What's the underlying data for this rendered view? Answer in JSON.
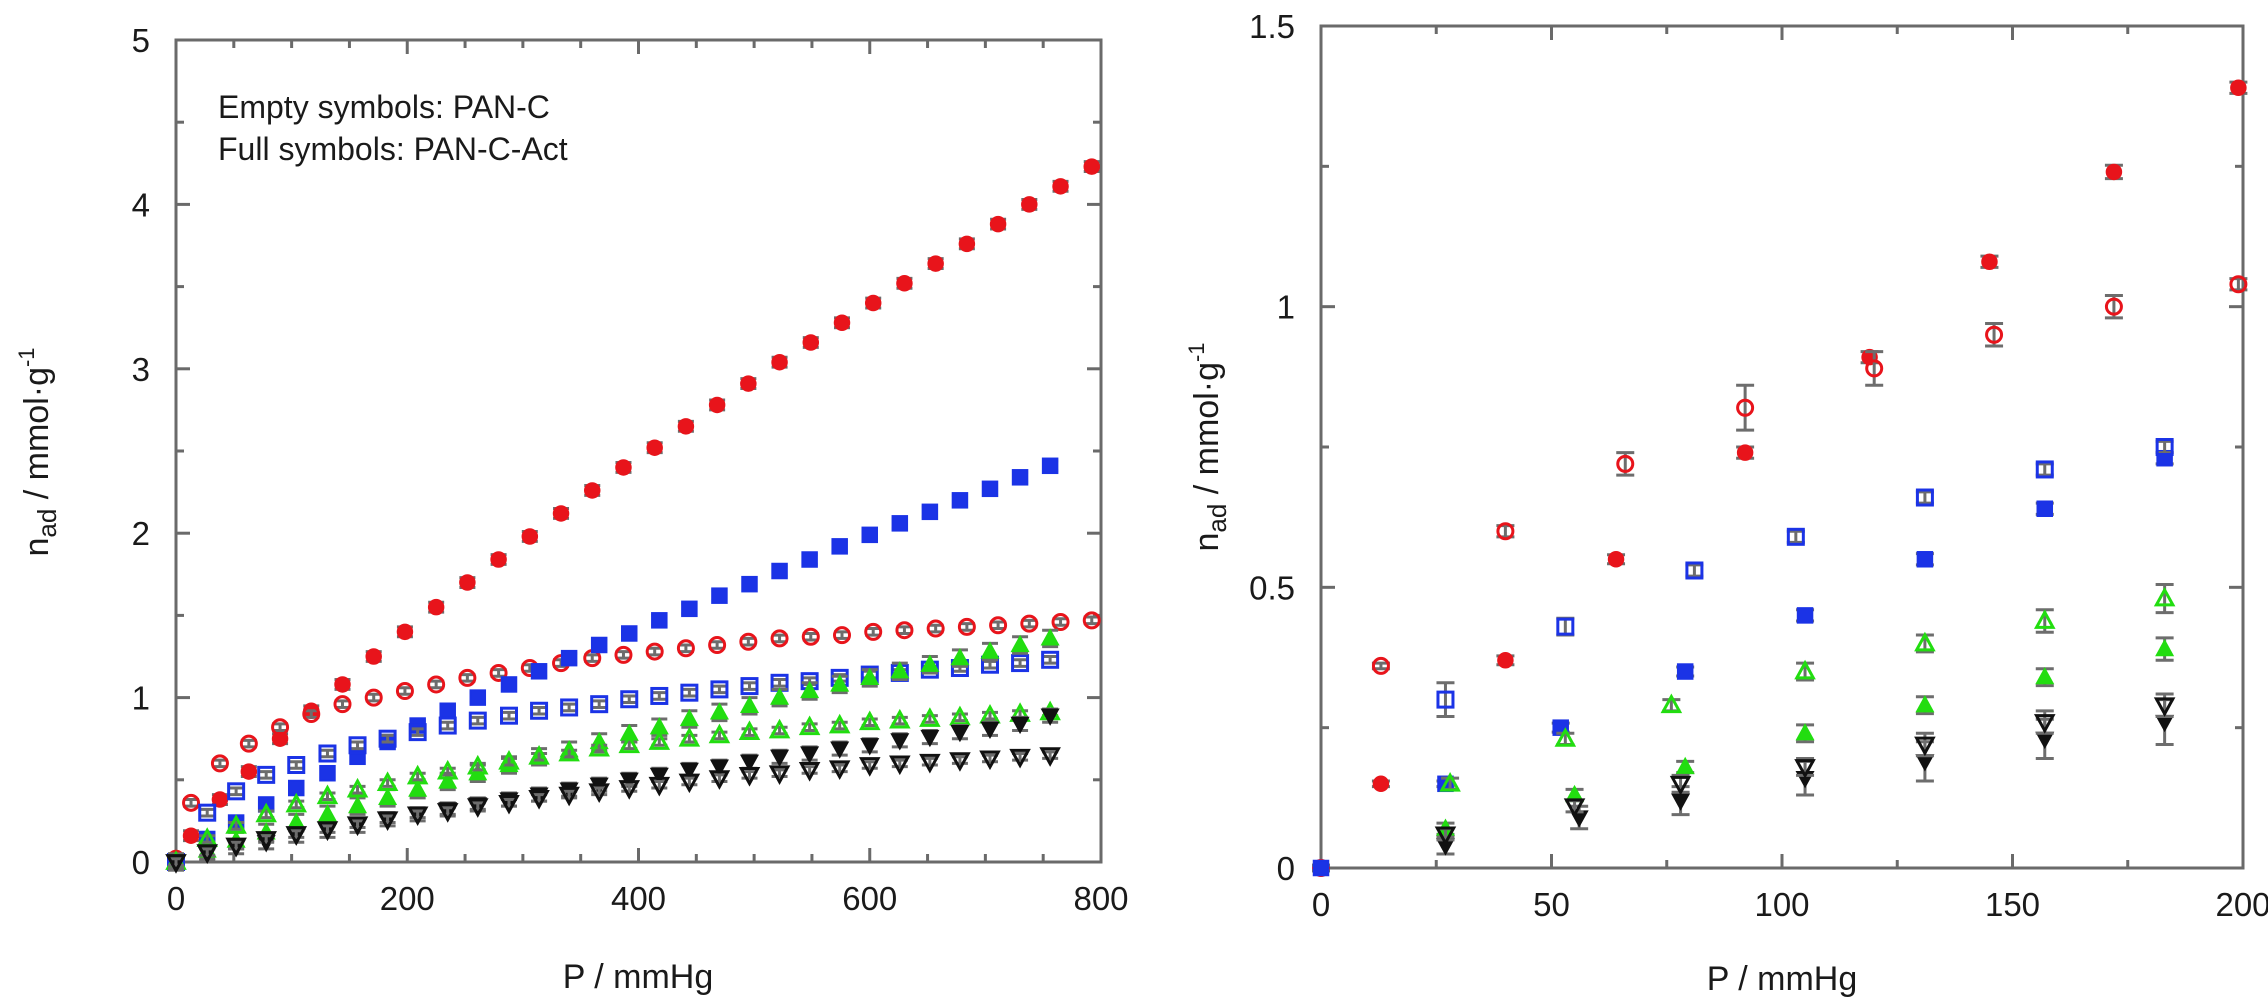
{
  "colors": {
    "red": "#e8141b",
    "blue": "#1b33e6",
    "green": "#22dd10",
    "black": "#111111",
    "axis": "#6a6a6a",
    "errorbar": "#6d6d6d"
  },
  "chart_data": [
    {
      "type": "scatter",
      "xlabel": "P / mmHg",
      "ylabel_main": "n",
      "ylabel_sub": "ad",
      "ylabel_rest": " / mmol·g",
      "ylabel_sup": "-1",
      "xlim": [
        0,
        800
      ],
      "ylim": [
        0,
        5
      ],
      "xticks": [
        "0",
        "200",
        "400",
        "600",
        "800"
      ],
      "yticks": [
        "0",
        "1",
        "2",
        "3",
        "4",
        "5"
      ],
      "xtick_values": [
        0,
        200,
        400,
        600,
        800
      ],
      "ytick_values": [
        0,
        1,
        2,
        3,
        4,
        5
      ],
      "annotations": [
        "Empty symbols: PAN-C",
        "Full symbols: PAN-C-Act"
      ],
      "series": [
        {
          "name": "PAN-C-Act red",
          "marker": "circle",
          "filled": true,
          "color": "red",
          "x": [
            0,
            13,
            38,
            63,
            90,
            117,
            144,
            171,
            198,
            225,
            252,
            279,
            306,
            333,
            360,
            387,
            414,
            441,
            468,
            495,
            522,
            549,
            576,
            603,
            630,
            657,
            684,
            711,
            738,
            765,
            792
          ],
          "y": [
            0.02,
            0.16,
            0.38,
            0.55,
            0.75,
            0.92,
            1.08,
            1.25,
            1.4,
            1.55,
            1.7,
            1.84,
            1.98,
            2.12,
            2.26,
            2.4,
            2.52,
            2.65,
            2.78,
            2.91,
            3.04,
            3.16,
            3.28,
            3.4,
            3.52,
            3.64,
            3.76,
            3.88,
            4.0,
            4.11,
            4.23
          ],
          "err": 0.03
        },
        {
          "name": "PAN-C red",
          "marker": "circle",
          "filled": false,
          "color": "red",
          "x": [
            0,
            13,
            38,
            63,
            90,
            117,
            144,
            171,
            198,
            225,
            252,
            279,
            306,
            333,
            360,
            387,
            414,
            441,
            468,
            495,
            522,
            549,
            576,
            603,
            630,
            657,
            684,
            711,
            738,
            765,
            792
          ],
          "y": [
            0.02,
            0.36,
            0.6,
            0.72,
            0.82,
            0.9,
            0.96,
            1.0,
            1.04,
            1.08,
            1.12,
            1.15,
            1.18,
            1.21,
            1.24,
            1.26,
            1.28,
            1.3,
            1.32,
            1.34,
            1.36,
            1.37,
            1.38,
            1.4,
            1.41,
            1.42,
            1.43,
            1.44,
            1.45,
            1.46,
            1.47
          ],
          "err": 0.02
        },
        {
          "name": "PAN-C-Act blue",
          "marker": "square",
          "filled": true,
          "color": "blue",
          "x": [
            0,
            27,
            52,
            78,
            104,
            131,
            157,
            183,
            209,
            235,
            261,
            288,
            314,
            340,
            366,
            392,
            418,
            444,
            470,
            496,
            522,
            548,
            574,
            600,
            626,
            652,
            678,
            704,
            730,
            756
          ],
          "y": [
            0.0,
            0.14,
            0.24,
            0.35,
            0.45,
            0.54,
            0.64,
            0.73,
            0.83,
            0.92,
            1.0,
            1.08,
            1.16,
            1.24,
            1.32,
            1.39,
            1.47,
            1.54,
            1.62,
            1.69,
            1.77,
            1.84,
            1.92,
            1.99,
            2.06,
            2.13,
            2.2,
            2.27,
            2.34,
            2.41
          ],
          "err": 0.03
        },
        {
          "name": "PAN-C blue",
          "marker": "square",
          "filled": false,
          "color": "blue",
          "x": [
            0,
            27,
            52,
            78,
            104,
            131,
            157,
            183,
            209,
            235,
            261,
            288,
            314,
            340,
            366,
            392,
            418,
            444,
            470,
            496,
            522,
            548,
            574,
            600,
            626,
            652,
            678,
            704,
            730,
            756
          ],
          "y": [
            0.0,
            0.3,
            0.43,
            0.53,
            0.59,
            0.66,
            0.71,
            0.75,
            0.79,
            0.83,
            0.86,
            0.89,
            0.92,
            0.94,
            0.96,
            0.99,
            1.01,
            1.03,
            1.05,
            1.07,
            1.09,
            1.1,
            1.12,
            1.14,
            1.15,
            1.17,
            1.18,
            1.2,
            1.21,
            1.23
          ],
          "err": 0.02
        },
        {
          "name": "PAN-C-Act green",
          "marker": "triangle-up",
          "filled": true,
          "color": "green",
          "x": [
            0,
            27,
            52,
            78,
            104,
            131,
            157,
            183,
            209,
            235,
            261,
            288,
            314,
            340,
            366,
            392,
            418,
            444,
            470,
            496,
            522,
            548,
            574,
            600,
            626,
            652,
            678,
            704,
            730,
            756
          ],
          "y": [
            0.0,
            0.07,
            0.13,
            0.18,
            0.24,
            0.29,
            0.34,
            0.39,
            0.44,
            0.49,
            0.54,
            0.59,
            0.64,
            0.68,
            0.73,
            0.78,
            0.82,
            0.87,
            0.91,
            0.95,
            1.0,
            1.04,
            1.08,
            1.12,
            1.16,
            1.2,
            1.24,
            1.28,
            1.32,
            1.36
          ],
          "err": 0.05
        },
        {
          "name": "PAN-C green",
          "marker": "triangle-up",
          "filled": false,
          "color": "green",
          "x": [
            0,
            27,
            52,
            78,
            104,
            131,
            157,
            183,
            209,
            235,
            261,
            288,
            314,
            340,
            366,
            392,
            418,
            444,
            470,
            496,
            522,
            548,
            574,
            600,
            626,
            652,
            678,
            704,
            730,
            756
          ],
          "y": [
            0.0,
            0.14,
            0.22,
            0.29,
            0.35,
            0.4,
            0.44,
            0.48,
            0.52,
            0.55,
            0.58,
            0.61,
            0.64,
            0.66,
            0.69,
            0.71,
            0.73,
            0.75,
            0.77,
            0.79,
            0.8,
            0.82,
            0.83,
            0.85,
            0.86,
            0.87,
            0.88,
            0.89,
            0.9,
            0.91
          ],
          "err": 0.02
        },
        {
          "name": "PAN-C-Act black",
          "marker": "triangle-down",
          "filled": true,
          "color": "black",
          "x": [
            0,
            27,
            52,
            78,
            104,
            131,
            157,
            183,
            209,
            235,
            261,
            288,
            314,
            340,
            366,
            392,
            418,
            444,
            470,
            496,
            522,
            548,
            574,
            600,
            626,
            652,
            678,
            704,
            730,
            756
          ],
          "y": [
            0.0,
            0.05,
            0.09,
            0.12,
            0.16,
            0.19,
            0.22,
            0.26,
            0.29,
            0.32,
            0.35,
            0.38,
            0.41,
            0.44,
            0.47,
            0.5,
            0.53,
            0.56,
            0.58,
            0.61,
            0.64,
            0.66,
            0.69,
            0.71,
            0.74,
            0.76,
            0.79,
            0.81,
            0.84,
            0.89
          ],
          "err": 0.04
        },
        {
          "name": "PAN-C black",
          "marker": "triangle-down",
          "filled": false,
          "color": "black",
          "x": [
            0,
            27,
            52,
            78,
            104,
            131,
            157,
            183,
            209,
            235,
            261,
            288,
            314,
            340,
            366,
            392,
            418,
            444,
            470,
            496,
            522,
            548,
            574,
            600,
            626,
            652,
            678,
            704,
            730,
            756
          ],
          "y": [
            0.0,
            0.06,
            0.1,
            0.14,
            0.17,
            0.2,
            0.23,
            0.26,
            0.29,
            0.31,
            0.34,
            0.36,
            0.39,
            0.41,
            0.43,
            0.45,
            0.47,
            0.49,
            0.51,
            0.53,
            0.54,
            0.56,
            0.57,
            0.59,
            0.6,
            0.61,
            0.62,
            0.63,
            0.64,
            0.65
          ],
          "err": 0.02
        }
      ]
    },
    {
      "type": "scatter",
      "xlabel": "P / mmHg",
      "ylabel_main": "n",
      "ylabel_sub": "ad",
      "ylabel_rest": " / mmol·g",
      "ylabel_sup": "-1",
      "xlim": [
        0,
        200
      ],
      "ylim": [
        0,
        1.5
      ],
      "xticks": [
        "0",
        "50",
        "100",
        "150",
        "200"
      ],
      "yticks": [
        "0",
        "0.5",
        "1",
        "1.5"
      ],
      "xtick_values": [
        0,
        50,
        100,
        150,
        200
      ],
      "ytick_values": [
        0,
        0.5,
        1,
        1.5
      ],
      "series": [
        {
          "name": "PAN-C-Act red",
          "marker": "circle",
          "filled": true,
          "color": "red",
          "x": [
            0,
            13,
            40,
            64,
            92,
            119,
            145,
            172,
            199
          ],
          "y": [
            0.0,
            0.15,
            0.37,
            0.55,
            0.74,
            0.91,
            1.08,
            1.24,
            1.39
          ],
          "err": [
            0.005,
            0.005,
            0.008,
            0.008,
            0.01,
            0.01,
            0.01,
            0.012,
            0.01
          ]
        },
        {
          "name": "PAN-C red",
          "marker": "circle",
          "filled": false,
          "color": "red",
          "x": [
            0,
            13,
            40,
            66,
            92,
            120,
            146,
            172,
            199
          ],
          "y": [
            0.0,
            0.36,
            0.6,
            0.72,
            0.82,
            0.89,
            0.95,
            1.0,
            1.04
          ],
          "err": [
            0.005,
            0.005,
            0.01,
            0.02,
            0.04,
            0.03,
            0.02,
            0.02,
            0.01
          ]
        },
        {
          "name": "PAN-C-Act blue",
          "marker": "square",
          "filled": true,
          "color": "blue",
          "x": [
            0,
            27,
            52,
            79,
            105,
            131,
            157,
            183
          ],
          "y": [
            0.0,
            0.15,
            0.25,
            0.35,
            0.45,
            0.55,
            0.64,
            0.73
          ],
          "err": [
            0.005,
            0.005,
            0.008,
            0.008,
            0.01,
            0.01,
            0.01,
            0.01
          ]
        },
        {
          "name": "PAN-C blue",
          "marker": "square",
          "filled": false,
          "color": "blue",
          "x": [
            27,
            53,
            81,
            103,
            131,
            157,
            183
          ],
          "y": [
            0.3,
            0.43,
            0.53,
            0.59,
            0.66,
            0.71,
            0.75
          ],
          "err": [
            0.03,
            0.015,
            0.01,
            0.01,
            0.01,
            0.01,
            0.01
          ]
        },
        {
          "name": "PAN-C-Act green",
          "marker": "triangle-up",
          "filled": true,
          "color": "green",
          "x": [
            27,
            55,
            79,
            105,
            131,
            157,
            183
          ],
          "y": [
            0.07,
            0.13,
            0.18,
            0.24,
            0.29,
            0.34,
            0.39
          ],
          "err": [
            0.01,
            0.01,
            0.01,
            0.015,
            0.015,
            0.015,
            0.02
          ]
        },
        {
          "name": "PAN-C green",
          "marker": "triangle-up",
          "filled": false,
          "color": "green",
          "x": [
            28,
            53,
            76,
            105,
            131,
            157,
            183
          ],
          "y": [
            0.15,
            0.23,
            0.29,
            0.35,
            0.4,
            0.44,
            0.48
          ],
          "err": [
            0.01,
            0.01,
            0.01,
            0.015,
            0.015,
            0.02,
            0.025
          ]
        },
        {
          "name": "PAN-C-Act black",
          "marker": "triangle-down",
          "filled": true,
          "color": "black",
          "x": [
            27,
            56,
            78,
            105,
            131,
            157,
            183
          ],
          "y": [
            0.04,
            0.09,
            0.12,
            0.16,
            0.19,
            0.23,
            0.26
          ],
          "err": [
            0.015,
            0.02,
            0.025,
            0.03,
            0.035,
            0.035,
            0.04
          ]
        },
        {
          "name": "PAN-C black",
          "marker": "triangle-down",
          "filled": false,
          "color": "black",
          "x": [
            27,
            55,
            78,
            105,
            131,
            157,
            183
          ],
          "y": [
            0.06,
            0.11,
            0.15,
            0.18,
            0.22,
            0.26,
            0.29
          ],
          "err": [
            0.01,
            0.01,
            0.015,
            0.015,
            0.02,
            0.02,
            0.02
          ]
        }
      ]
    }
  ]
}
